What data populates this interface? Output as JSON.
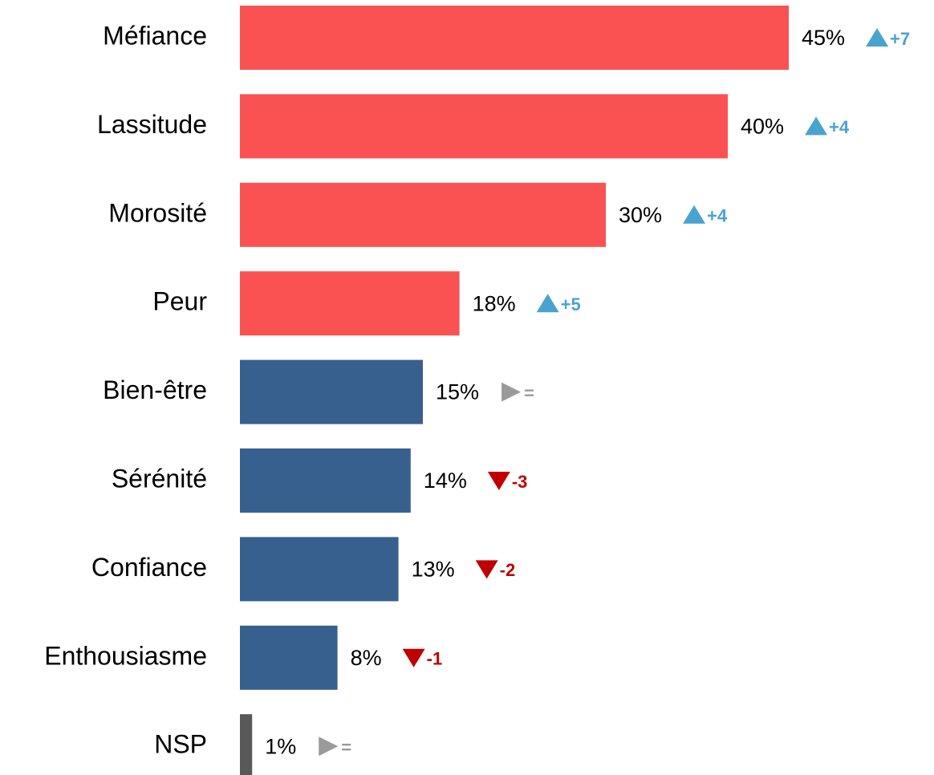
{
  "chart_data": {
    "type": "bar",
    "orientation": "horizontal",
    "categories": [
      "Méfiance",
      "Lassitude",
      "Morosité",
      "Peur",
      "Bien-être",
      "Sérénité",
      "Confiance",
      "Enthousiasme",
      "NSP"
    ],
    "values": [
      45,
      40,
      30,
      18,
      15,
      14,
      13,
      8,
      1
    ],
    "value_labels": [
      "45%",
      "40%",
      "30%",
      "18%",
      "15%",
      "14%",
      "13%",
      "8%",
      "1%"
    ],
    "colors": [
      "#fa5252",
      "#fa5252",
      "#fa5252",
      "#fa5252",
      "#37608f",
      "#37608f",
      "#37608f",
      "#37608f",
      "#595959"
    ],
    "changes": [
      7,
      4,
      4,
      5,
      0,
      -3,
      -2,
      -1,
      0
    ],
    "change_labels": [
      "+7",
      "+4",
      "+4",
      "+5",
      "=",
      "-3",
      "-2",
      "-1",
      "="
    ],
    "change_colors": {
      "up": "#4aa3cf",
      "down": "#c00000",
      "same": "#9a9a9a"
    }
  }
}
